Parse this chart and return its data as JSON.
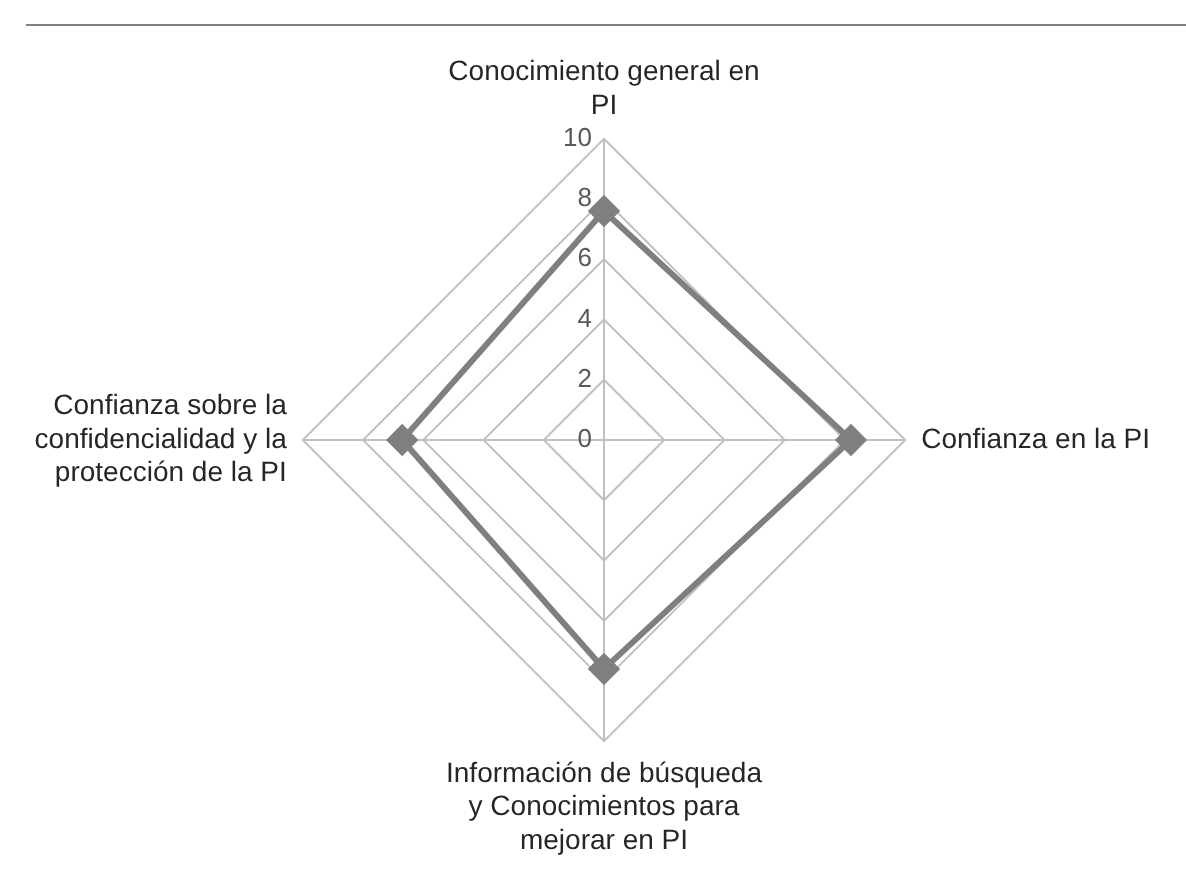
{
  "chart_data": {
    "type": "radar",
    "categories": [
      "Conocimiento general en PI",
      "Confianza en la PI",
      "Información de búsqueda y Conocimientos para mejorar en PI",
      "Confianza sobre la confidencialidad y la protección de la PI"
    ],
    "series": [
      {
        "color": "#7f7f7f",
        "values": [
          7.6,
          8.2,
          7.6,
          6.7
        ]
      }
    ],
    "ylim": [
      0,
      10
    ],
    "yticks": [
      0,
      2,
      4,
      6,
      8,
      10
    ],
    "grid": true,
    "legend": false,
    "marker": "diamond"
  }
}
